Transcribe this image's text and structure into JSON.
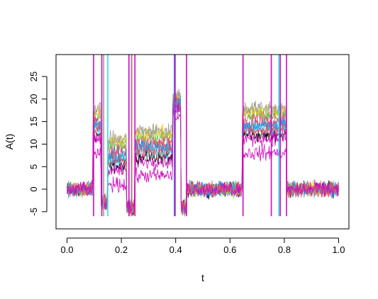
{
  "chart_data": {
    "type": "line",
    "title": "",
    "xlabel": "t",
    "ylabel": "A(t)",
    "xlim": [
      0.0,
      1.0
    ],
    "ylim": [
      -6,
      29
    ],
    "grid": false,
    "x_ticks": [
      "0.0",
      "0.2",
      "0.4",
      "0.6",
      "0.8",
      "1.0"
    ],
    "y_ticks": [
      "-5",
      "0",
      "5",
      "10",
      "15",
      "20",
      "25"
    ],
    "segments": [
      {
        "x_start": 0.0,
        "x_end": 0.095,
        "level": 0,
        "scale": 0.0
      },
      {
        "x_start": 0.095,
        "x_end": 0.125,
        "level": 12,
        "scale": 1.0
      },
      {
        "x_start": 0.125,
        "x_end": 0.15,
        "level": -3,
        "scale": 0.0
      },
      {
        "x_start": 0.15,
        "x_end": 0.22,
        "level": 5,
        "scale": 1.0
      },
      {
        "x_start": 0.22,
        "x_end": 0.25,
        "level": -4,
        "scale": 0.0
      },
      {
        "x_start": 0.25,
        "x_end": 0.39,
        "level": 7,
        "scale": 1.0
      },
      {
        "x_start": 0.39,
        "x_end": 0.42,
        "level": 18,
        "scale": 0.5
      },
      {
        "x_start": 0.42,
        "x_end": 0.44,
        "level": -4,
        "scale": 0.0
      },
      {
        "x_start": 0.44,
        "x_end": 0.645,
        "level": 0,
        "scale": 0.0
      },
      {
        "x_start": 0.645,
        "x_end": 0.81,
        "level": 12,
        "scale": 1.0
      },
      {
        "x_start": 0.81,
        "x_end": 1.0,
        "level": 0,
        "scale": 0.0
      }
    ],
    "series": [
      {
        "color": "#000000",
        "offset": 0.0
      },
      {
        "color": "#df536b",
        "offset": 1.0
      },
      {
        "color": "#61d04f",
        "offset": 1.2
      },
      {
        "color": "#2297e6",
        "offset": 0.6
      },
      {
        "color": "#28e2e5",
        "offset": 0.4
      },
      {
        "color": "#cd0bbc",
        "offset": -1.0
      },
      {
        "color": "#f5c710",
        "offset": 1.4
      },
      {
        "color": "#9e9e9e",
        "offset": 1.5
      },
      {
        "color": "#df536b",
        "offset": 0.7
      },
      {
        "color": "#2297e6",
        "offset": 0.5
      },
      {
        "color": "#df536b",
        "offset": 0.3
      },
      {
        "color": "#cd0bbc",
        "offset": -0.2
      }
    ],
    "spikes": [
      {
        "x": 0.098,
        "color": "#cd0bbc"
      },
      {
        "x": 0.128,
        "color": "#cd0bbc"
      },
      {
        "x": 0.135,
        "color": "#9e9e9e"
      },
      {
        "x": 0.15,
        "color": "#28e2e5"
      },
      {
        "x": 0.228,
        "color": "#cd0bbc"
      },
      {
        "x": 0.238,
        "color": "#df536b"
      },
      {
        "x": 0.25,
        "color": "#cd0bbc"
      },
      {
        "x": 0.395,
        "color": "#2297e6"
      },
      {
        "x": 0.398,
        "color": "#cd0bbc"
      },
      {
        "x": 0.44,
        "color": "#cd0bbc"
      },
      {
        "x": 0.648,
        "color": "#cd0bbc"
      },
      {
        "x": 0.752,
        "color": "#cd0bbc"
      },
      {
        "x": 0.78,
        "color": "#28e2e5"
      },
      {
        "x": 0.785,
        "color": "#cd0bbc"
      },
      {
        "x": 0.808,
        "color": "#cd0bbc"
      }
    ]
  }
}
